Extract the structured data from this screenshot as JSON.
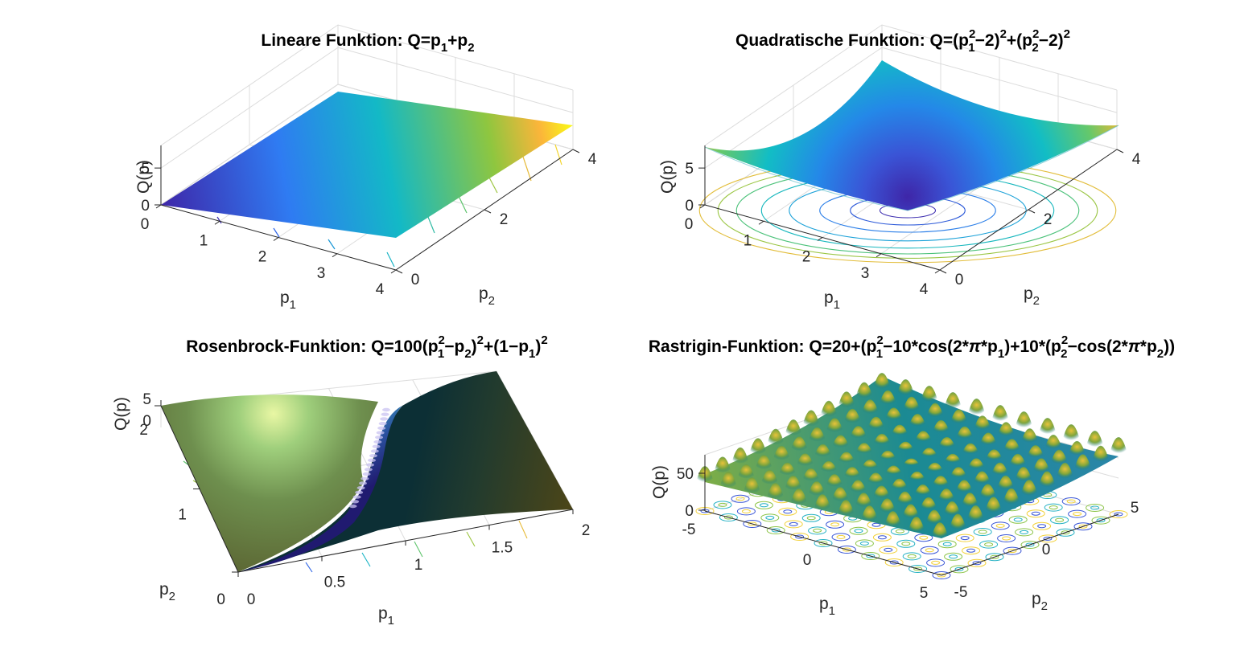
{
  "chart_data": [
    {
      "type": "surface",
      "title": "Lineare Funktion: Q=p₁+p₂",
      "title_parts": [
        "Lineare Funktion: Q=p",
        "1",
        "+p",
        "2"
      ],
      "xlabel": "p₁",
      "ylabel": "p₂",
      "zlabel": "Q(p)",
      "xlabel_parts": [
        "p",
        "1"
      ],
      "ylabel_parts": [
        "p",
        "2"
      ],
      "xlim": [
        0,
        4
      ],
      "ylim": [
        0,
        4
      ],
      "zlim": [
        0,
        8
      ],
      "xticks": [
        "0",
        "1",
        "2",
        "3",
        "4"
      ],
      "yticks": [
        "0",
        "2",
        "4"
      ],
      "zticks": [
        "0",
        "5"
      ],
      "colormap": "parula",
      "contour": true,
      "grid": true
    },
    {
      "type": "surface",
      "title": "Quadratische Funktion: Q=(p₁²−2)²+(p₂²−2)²",
      "title_parts": [
        "Quadratische Funktion: Q=(p",
        "2",
        "1",
        "−2)",
        "2",
        "+(p",
        "2",
        "2",
        "−2)",
        "2"
      ],
      "xlabel": "p₁",
      "ylabel": "p₂",
      "zlabel": "Q(p)",
      "xlabel_parts": [
        "p",
        "1"
      ],
      "ylabel_parts": [
        "p",
        "2"
      ],
      "xlim": [
        0,
        4
      ],
      "ylim": [
        0,
        4
      ],
      "zlim": [
        0,
        8
      ],
      "xticks": [
        "0",
        "1",
        "2",
        "3",
        "4"
      ],
      "yticks": [
        "0",
        "2",
        "4"
      ],
      "zticks": [
        "0",
        "5"
      ],
      "colormap": "parula",
      "contour": true,
      "grid": true
    },
    {
      "type": "surface",
      "title": "Rosenbrock-Funktion: Q=100(p₁²−p₂)²+(1−p₁)²",
      "title_parts": [
        "Rosenbrock-Funktion: Q=100(p",
        "2",
        "1",
        "−p",
        "2",
        ")",
        "2",
        "+(1−p",
        "1",
        ")",
        "2"
      ],
      "xlabel": "p₁",
      "ylabel": "p₂",
      "zlabel": "Q(p)",
      "xlabel_parts": [
        "p",
        "1"
      ],
      "ylabel_parts": [
        "p",
        "2"
      ],
      "xlim": [
        0,
        2
      ],
      "ylim": [
        0,
        2
      ],
      "zlim": [
        0,
        5
      ],
      "xticks": [
        "0",
        "0.5",
        "1",
        "1.5",
        "2"
      ],
      "yticks": [
        "0",
        "1",
        "2"
      ],
      "zticks": [
        "0",
        "5"
      ],
      "colormap": "shaded",
      "contour": true,
      "grid": true
    },
    {
      "type": "surface",
      "title": "Rastrigin-Funktion: Q=20+(p₁²−10*cos(2*π*p₁)+10*(p₂²−cos(2*π*p₂))",
      "title_parts": [
        "Rastrigin-Funktion: Q=20+(p",
        "2",
        "1",
        "−10*cos(2*",
        "π",
        "*p",
        "1",
        ")+10*(p",
        "2",
        "2",
        "−cos(2*",
        "π",
        "*p",
        "2",
        "))"
      ],
      "xlabel": "p₁",
      "ylabel": "p₂",
      "zlabel": "Q(p)",
      "xlabel_parts": [
        "p",
        "1"
      ],
      "ylabel_parts": [
        "p",
        "2"
      ],
      "xlim": [
        -5,
        5
      ],
      "ylim": [
        -5,
        5
      ],
      "zlim": [
        0,
        80
      ],
      "xticks": [
        "-5",
        "0",
        "5"
      ],
      "yticks": [
        "-5",
        "0",
        "5"
      ],
      "zticks": [
        "0",
        "50"
      ],
      "colormap": "parula",
      "contour": true,
      "grid": true
    }
  ]
}
